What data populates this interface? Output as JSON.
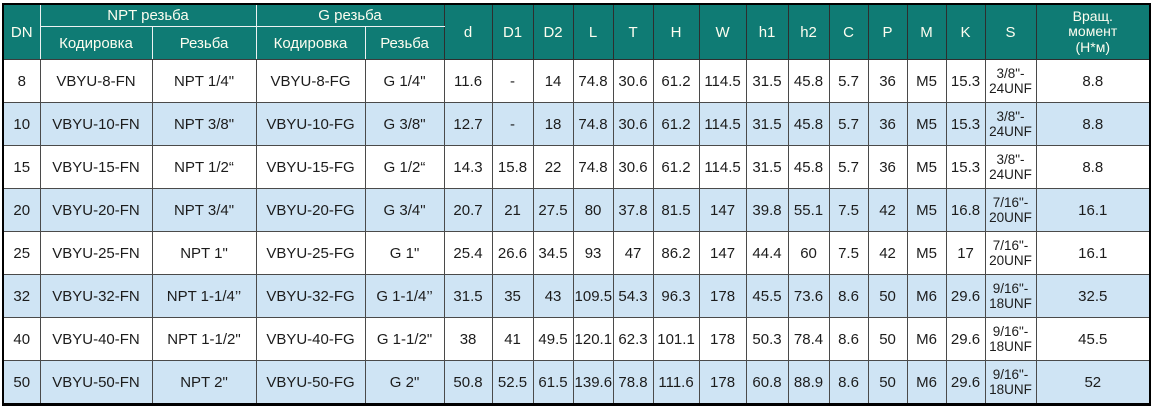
{
  "colors": {
    "header_bg": "#0f7b74",
    "header_text": "#fdfdf0",
    "row_alt_bg": "#cfe4f4",
    "grid_border": "#4a4a4a",
    "outer_border": "#000000"
  },
  "table": {
    "header": {
      "dn": "DN",
      "npt_group": "NPT резьба",
      "g_group": "G резьба",
      "npt_coding": "Кодировка",
      "npt_thread": "Резьба",
      "g_coding": "Кодировка",
      "g_thread": "Резьба",
      "dims": [
        "d",
        "D1",
        "D2",
        "L",
        "T",
        "H",
        "W",
        "h1",
        "h2",
        "C",
        "P",
        "M",
        "K"
      ],
      "s": "S",
      "torque": "Вращ.\nмомент\n(Н*м)"
    },
    "rows": [
      {
        "dn": "8",
        "npt_code": "VBYU-8-FN",
        "npt_thread": "NPT 1/4\"",
        "g_code": "VBYU-8-FG",
        "g_thread": "G 1/4\"",
        "values": [
          "11.6",
          "-",
          "14",
          "74.8",
          "30.6",
          "61.2",
          "114.5",
          "31.5",
          "45.8",
          "5.7",
          "36",
          "M5",
          "15.3"
        ],
        "s": "3/8\"-\n24UNF",
        "torque": "8.8"
      },
      {
        "dn": "10",
        "npt_code": "VBYU-10-FN",
        "npt_thread": "NPT 3/8\"",
        "g_code": "VBYU-10-FG",
        "g_thread": "G 3/8\"",
        "values": [
          "12.7",
          "-",
          "18",
          "74.8",
          "30.6",
          "61.2",
          "114.5",
          "31.5",
          "45.8",
          "5.7",
          "36",
          "M5",
          "15.3"
        ],
        "s": "3/8\"-\n24UNF",
        "torque": "8.8"
      },
      {
        "dn": "15",
        "npt_code": "VBYU-15-FN",
        "npt_thread": "NPT 1/2“",
        "g_code": "VBYU-15-FG",
        "g_thread": "G 1/2“",
        "values": [
          "14.3",
          "15.8",
          "22",
          "74.8",
          "30.6",
          "61.2",
          "114.5",
          "31.5",
          "45.8",
          "5.7",
          "36",
          "M5",
          "15.3"
        ],
        "s": "3/8\"-\n24UNF",
        "torque": "8.8"
      },
      {
        "dn": "20",
        "npt_code": "VBYU-20-FN",
        "npt_thread": "NPT 3/4\"",
        "g_code": "VBYU-20-FG",
        "g_thread": "G 3/4\"",
        "values": [
          "20.7",
          "21",
          "27.5",
          "80",
          "37.8",
          "81.5",
          "147",
          "39.8",
          "55.1",
          "7.5",
          "42",
          "M5",
          "16.8"
        ],
        "s": "7/16\"-\n20UNF",
        "torque": "16.1"
      },
      {
        "dn": "25",
        "npt_code": "VBYU-25-FN",
        "npt_thread": "NPT 1\"",
        "g_code": "VBYU-25-FG",
        "g_thread": "G 1\"",
        "values": [
          "25.4",
          "26.6",
          "34.5",
          "93",
          "47",
          "86.2",
          "147",
          "44.4",
          "60",
          "7.5",
          "42",
          "M5",
          "17"
        ],
        "s": "7/16\"-\n20UNF",
        "torque": "16.1"
      },
      {
        "dn": "32",
        "npt_code": "VBYU-32-FN",
        "npt_thread": "NPT 1-1/4’’",
        "g_code": "VBYU-32-FG",
        "g_thread": "G 1-1/4’’",
        "values": [
          "31.5",
          "35",
          "43",
          "109.5",
          "54.3",
          "96.3",
          "178",
          "45.5",
          "73.6",
          "8.6",
          "50",
          "M6",
          "29.6"
        ],
        "s": "9/16\"-\n18UNF",
        "torque": "32.5"
      },
      {
        "dn": "40",
        "npt_code": "VBYU-40-FN",
        "npt_thread": "NPT 1-1/2\"",
        "g_code": "VBYU-40-FG",
        "g_thread": "G 1-1/2\"",
        "values": [
          "38",
          "41",
          "49.5",
          "120.1",
          "62.3",
          "101.1",
          "178",
          "50.3",
          "78.4",
          "8.6",
          "50",
          "M6",
          "29.6"
        ],
        "s": "9/16\"-\n18UNF",
        "torque": "45.5"
      },
      {
        "dn": "50",
        "npt_code": "VBYU-50-FN",
        "npt_thread": "NPT 2\"",
        "g_code": "VBYU-50-FG",
        "g_thread": "G 2\"",
        "values": [
          "50.8",
          "52.5",
          "61.5",
          "139.6",
          "78.8",
          "111.6",
          "178",
          "60.8",
          "88.9",
          "8.6",
          "50",
          "M6",
          "29.6"
        ],
        "s": "9/16\"-\n18UNF",
        "torque": "52"
      }
    ]
  }
}
